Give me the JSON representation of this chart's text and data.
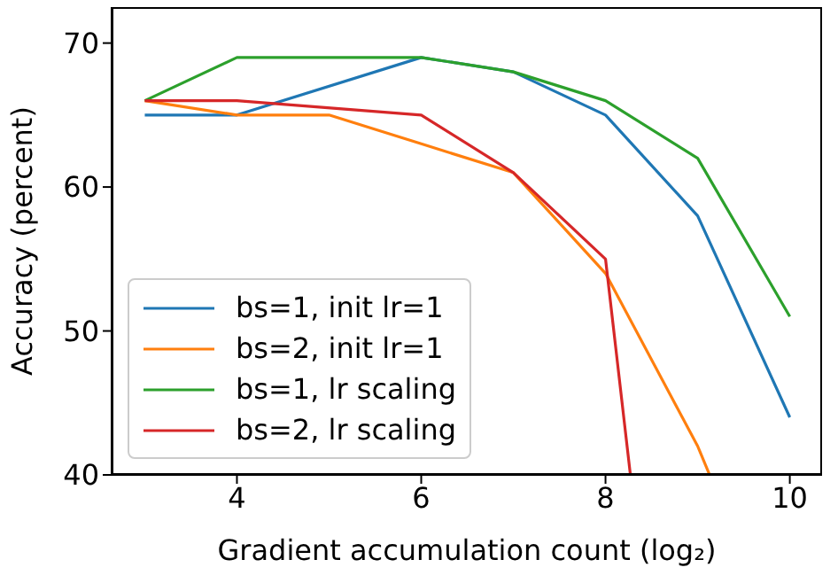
{
  "chart_data": {
    "type": "line",
    "xlabel": "Gradient accumulation count (log₂)",
    "ylabel": "Accuracy (percent)",
    "xlim": [
      2.64,
      10.35
    ],
    "xticks": [
      4,
      6,
      8,
      10
    ],
    "ylim": [
      40,
      72.5
    ],
    "yticks": [
      40,
      50,
      60,
      70
    ],
    "grid": false,
    "legend": "bottom left",
    "marker": "none",
    "line_style": "solid",
    "series": [
      {
        "name": "bs=1, init lr=1",
        "color": "#1f77b4",
        "x": [
          3,
          4,
          6,
          7,
          8,
          9,
          10
        ],
        "values": [
          65,
          65,
          69,
          68,
          65,
          58,
          44
        ]
      },
      {
        "name": "bs=2, init lr=1",
        "color": "#ff7f0e",
        "x": [
          3,
          4,
          5,
          6,
          7,
          8,
          9,
          9.13
        ],
        "values": [
          66,
          65,
          65,
          63,
          61,
          54,
          42,
          40
        ]
      },
      {
        "name": "bs=1, lr scaling",
        "color": "#2ca02c",
        "x": [
          3,
          4,
          6,
          7,
          8,
          9,
          10
        ],
        "values": [
          66,
          69,
          69,
          68,
          66,
          62,
          51
        ]
      },
      {
        "name": "bs=2, lr scaling",
        "color": "#d62728",
        "x": [
          3,
          4,
          6,
          7,
          8,
          8.27
        ],
        "values": [
          66,
          66,
          65,
          61,
          55,
          40
        ]
      }
    ]
  }
}
